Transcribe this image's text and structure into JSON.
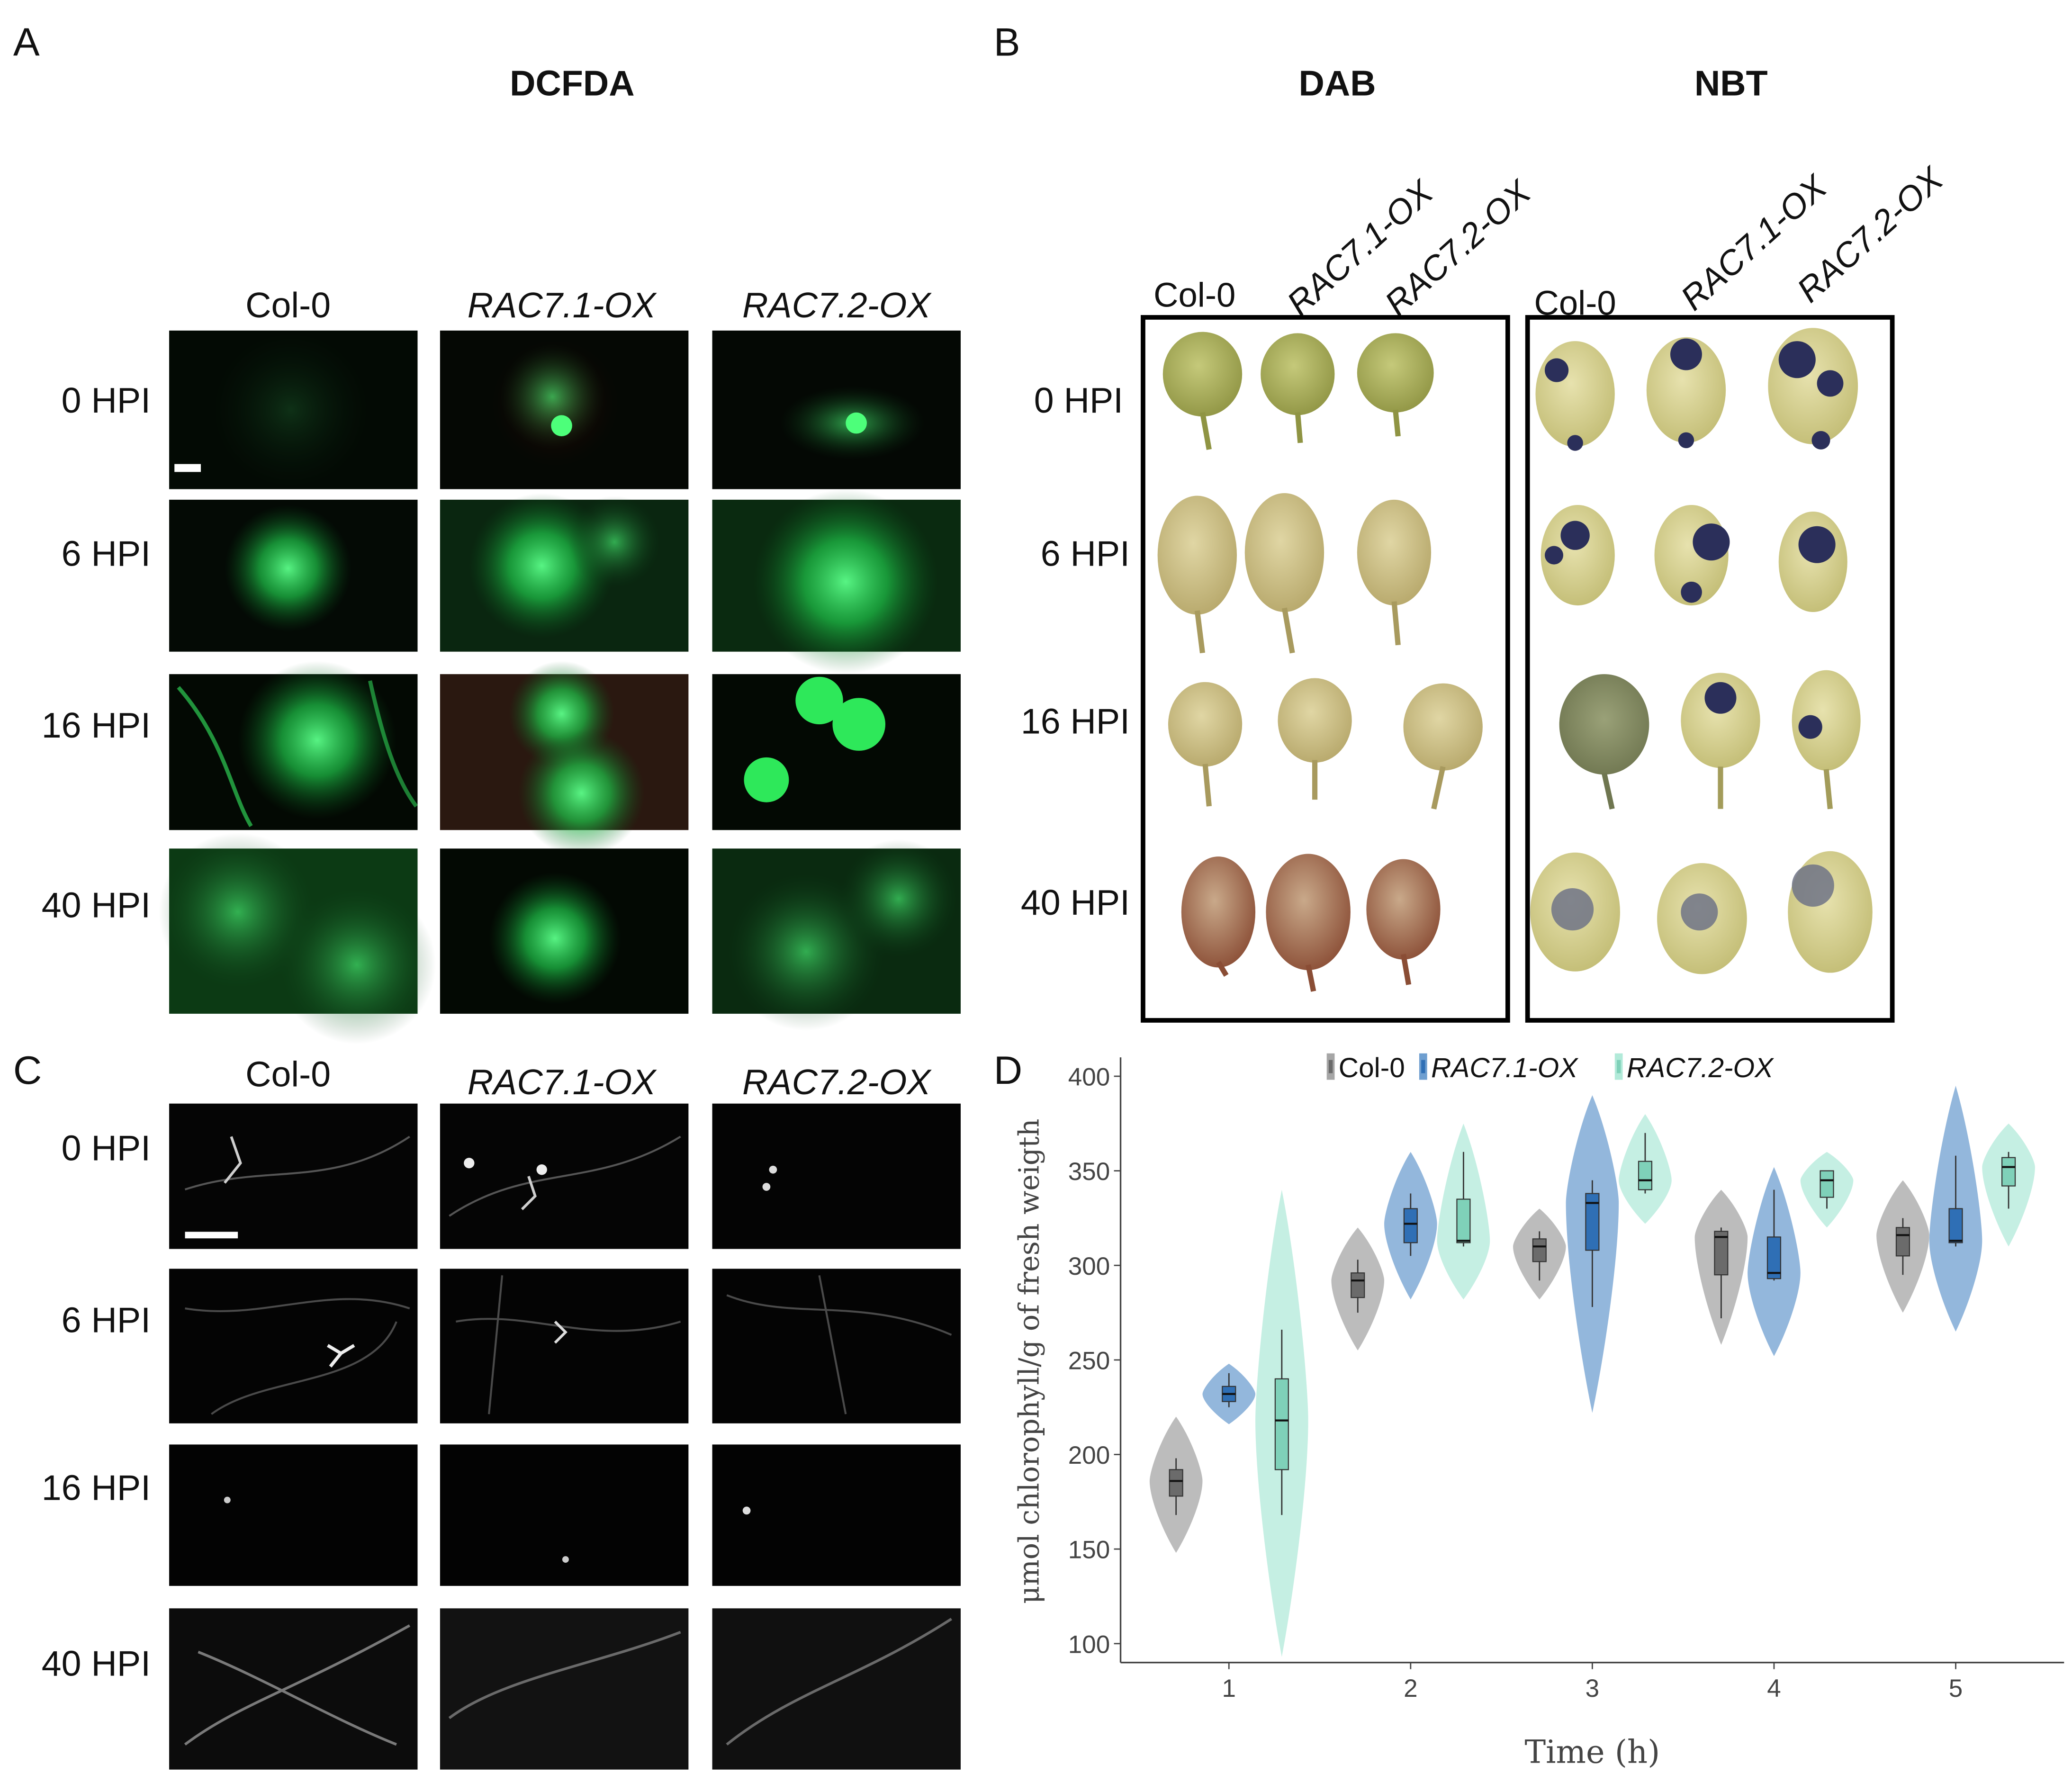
{
  "panels": {
    "a": {
      "letter": "A",
      "title": "DCFDA",
      "columns": [
        "Col-0",
        "RAC7.1-OX",
        "RAC7.2-OX"
      ],
      "rows": [
        "0 HPI",
        "6 HPI",
        "16 HPI",
        "40 HPI"
      ]
    },
    "b": {
      "letter": "B",
      "dab_title": "DAB",
      "nbt_title": "NBT",
      "dab_columns": [
        "Col-0",
        "RAC7.1-OX",
        "RAC7.2-OX"
      ],
      "nbt_columns": [
        "Col-0",
        "RAC7.1-OX",
        "RAC7.2-OX"
      ],
      "rows": [
        "0 HPI",
        "6 HPI",
        "16 HPI",
        "40 HPI"
      ]
    },
    "c": {
      "letter": "C",
      "columns": [
        "Col-0",
        "RAC7.1-OX",
        "RAC7.2-OX"
      ],
      "rows": [
        "0 HPI",
        "6 HPI",
        "16 HPI",
        "40 HPI"
      ]
    },
    "d": {
      "letter": "D"
    }
  },
  "chart_data": {
    "type": "violin",
    "xlabel": "Time (h)",
    "ylabel": "μmol chlorophyll/g  of fresh weigth",
    "x": [
      1,
      2,
      3,
      4,
      5
    ],
    "ylim": [
      90,
      410
    ],
    "yticks": [
      100,
      150,
      200,
      250,
      300,
      350,
      400
    ],
    "legend": [
      "Col-0",
      "RAC7.1-OX",
      "RAC7.2-OX"
    ],
    "series": [
      {
        "name": "Col-0",
        "color": "#a6a6a6",
        "box_color": "#6b6b6b",
        "groups": [
          {
            "x": 1,
            "min": 168,
            "q1": 178,
            "median": 186,
            "q3": 192,
            "max": 198,
            "vmin": 148,
            "vmax": 220
          },
          {
            "x": 2,
            "min": 275,
            "q1": 283,
            "median": 292,
            "q3": 296,
            "max": 303,
            "vmin": 255,
            "vmax": 320
          },
          {
            "x": 3,
            "min": 292,
            "q1": 302,
            "median": 310,
            "q3": 314,
            "max": 318,
            "vmin": 282,
            "vmax": 330
          },
          {
            "x": 4,
            "min": 272,
            "q1": 295,
            "median": 315,
            "q3": 318,
            "max": 320,
            "vmin": 258,
            "vmax": 340
          },
          {
            "x": 5,
            "min": 295,
            "q1": 305,
            "median": 316,
            "q3": 320,
            "max": 325,
            "vmin": 275,
            "vmax": 345
          }
        ]
      },
      {
        "name": "RAC7.1-OX",
        "color": "#6f9fd0",
        "box_color": "#2f6fb5",
        "groups": [
          {
            "x": 1,
            "min": 225,
            "q1": 228,
            "median": 232,
            "q3": 236,
            "max": 243,
            "vmin": 216,
            "vmax": 248
          },
          {
            "x": 2,
            "min": 305,
            "q1": 312,
            "median": 322,
            "q3": 330,
            "max": 338,
            "vmin": 282,
            "vmax": 360
          },
          {
            "x": 3,
            "min": 278,
            "q1": 308,
            "median": 333,
            "q3": 338,
            "max": 345,
            "vmin": 222,
            "vmax": 390
          },
          {
            "x": 4,
            "min": 292,
            "q1": 293,
            "median": 296,
            "q3": 315,
            "max": 340,
            "vmin": 252,
            "vmax": 352
          },
          {
            "x": 5,
            "min": 310,
            "q1": 312,
            "median": 313,
            "q3": 330,
            "max": 358,
            "vmin": 265,
            "vmax": 395
          }
        ]
      },
      {
        "name": "RAC7.2-OX",
        "color": "#b2ead9",
        "box_color": "#7fd1b9",
        "groups": [
          {
            "x": 1,
            "min": 168,
            "q1": 192,
            "median": 218,
            "q3": 240,
            "max": 266,
            "vmin": 93,
            "vmax": 340
          },
          {
            "x": 2,
            "min": 310,
            "q1": 312,
            "median": 313,
            "q3": 335,
            "max": 360,
            "vmin": 282,
            "vmax": 375
          },
          {
            "x": 3,
            "min": 338,
            "q1": 340,
            "median": 345,
            "q3": 355,
            "max": 370,
            "vmin": 322,
            "vmax": 380
          },
          {
            "x": 4,
            "min": 330,
            "q1": 336,
            "median": 345,
            "q3": 350,
            "max": 350,
            "vmin": 320,
            "vmax": 360
          },
          {
            "x": 5,
            "min": 330,
            "q1": 342,
            "median": 352,
            "q3": 357,
            "max": 360,
            "vmin": 310,
            "vmax": 375
          }
        ]
      }
    ]
  }
}
